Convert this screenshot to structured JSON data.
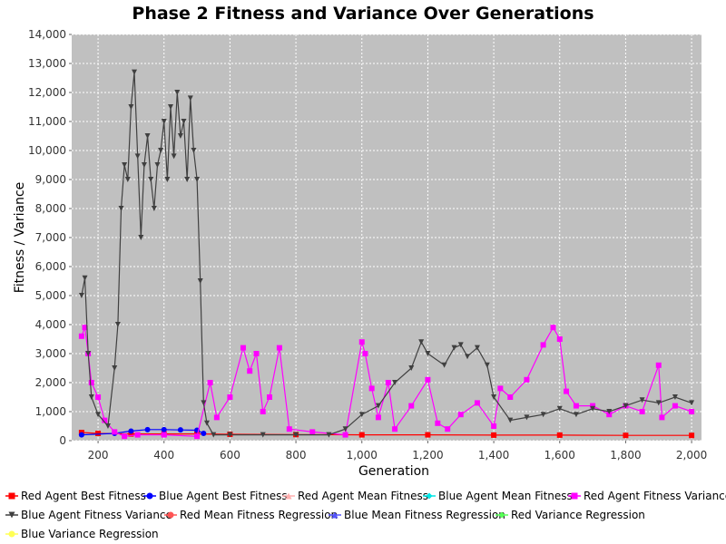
{
  "chart_data": {
    "type": "line",
    "title": "Phase 2 Fitness and Variance Over Generations",
    "xlabel": "Generation",
    "ylabel": "Fitness / Variance",
    "xlim": [
      120,
      2030
    ],
    "ylim": [
      0,
      14000
    ],
    "x_ticks": [
      200,
      400,
      600,
      800,
      1000,
      1200,
      1400,
      1600,
      1800,
      2000
    ],
    "x_tick_labels": [
      "200",
      "400",
      "600",
      "800",
      "1,000",
      "1,200",
      "1,400",
      "1,600",
      "1,800",
      "2,000"
    ],
    "y_ticks": [
      0,
      1000,
      2000,
      3000,
      4000,
      5000,
      6000,
      7000,
      8000,
      9000,
      10000,
      11000,
      12000,
      13000,
      14000
    ],
    "y_tick_labels": [
      "0",
      "1,000",
      "2,000",
      "3,000",
      "4,000",
      "5,000",
      "6,000",
      "7,000",
      "8,000",
      "9,000",
      "10,000",
      "11,000",
      "12,000",
      "13,000",
      "14,000"
    ],
    "grid": true,
    "background": "#c0c0c0",
    "legend_position": "bottom",
    "series": [
      {
        "name": "Red Agent Best Fitness",
        "color": "#ff0000",
        "marker": "square",
        "x": [
          150,
          200,
          300,
          400,
          500,
          600,
          800,
          1000,
          1200,
          1400,
          1600,
          1800,
          2000
        ],
        "values": [
          280,
          250,
          230,
          230,
          230,
          220,
          210,
          200,
          200,
          190,
          190,
          180,
          180
        ]
      },
      {
        "name": "Blue Agent Best Fitness",
        "color": "#0000ff",
        "marker": "circle",
        "x": [
          150,
          250,
          300,
          350,
          400,
          450,
          500,
          520
        ],
        "values": [
          200,
          250,
          330,
          380,
          380,
          370,
          360,
          250
        ]
      },
      {
        "name": "Red Agent Mean Fitness",
        "color": "#ffafaf",
        "marker": "triangle-up",
        "x": [],
        "values": []
      },
      {
        "name": "Blue Agent Mean Fitness",
        "color": "#00e5e5",
        "marker": "diamond",
        "x": [],
        "values": []
      },
      {
        "name": "Red Agent Fitness Variance",
        "color": "#ff00ff",
        "marker": "square",
        "x": [
          150,
          160,
          170,
          180,
          200,
          220,
          250,
          280,
          320,
          400,
          500,
          540,
          560,
          600,
          640,
          660,
          680,
          700,
          720,
          750,
          780,
          850,
          950,
          1000,
          1010,
          1030,
          1050,
          1080,
          1100,
          1150,
          1200,
          1230,
          1260,
          1300,
          1350,
          1400,
          1420,
          1450,
          1500,
          1550,
          1580,
          1600,
          1620,
          1650,
          1700,
          1750,
          1800,
          1850,
          1900,
          1910,
          1950,
          2000
        ],
        "values": [
          3600,
          3900,
          3000,
          2000,
          1500,
          700,
          300,
          150,
          200,
          200,
          150,
          2000,
          800,
          1500,
          3200,
          2400,
          3000,
          1000,
          1500,
          3200,
          400,
          300,
          200,
          3400,
          3000,
          1800,
          800,
          2000,
          400,
          1200,
          2100,
          600,
          400,
          900,
          1300,
          500,
          1800,
          1500,
          2100,
          3300,
          3900,
          3500,
          1700,
          1200,
          1200,
          900,
          1200,
          1000,
          2600,
          800,
          1200,
          1000
        ]
      },
      {
        "name": "Blue Agent Fitness Variance",
        "color": "#404040",
        "marker": "triangle-down",
        "x": [
          150,
          160,
          170,
          180,
          200,
          230,
          250,
          260,
          270,
          280,
          290,
          300,
          310,
          320,
          330,
          340,
          350,
          360,
          370,
          380,
          390,
          400,
          410,
          420,
          430,
          440,
          450,
          460,
          470,
          480,
          490,
          500,
          510,
          520,
          530,
          550,
          600,
          700,
          800,
          900,
          950,
          1000,
          1050,
          1100,
          1150,
          1180,
          1200,
          1250,
          1280,
          1300,
          1320,
          1350,
          1380,
          1400,
          1450,
          1500,
          1550,
          1600,
          1650,
          1700,
          1750,
          1800,
          1850,
          1900,
          1950,
          2000
        ],
        "values": [
          5000,
          5600,
          3000,
          1500,
          900,
          500,
          2500,
          4000,
          8000,
          9500,
          9000,
          11500,
          12700,
          9800,
          7000,
          9500,
          10500,
          9000,
          8000,
          9500,
          10000,
          11000,
          9000,
          11500,
          9800,
          12000,
          10500,
          11000,
          9000,
          11800,
          10000,
          9000,
          5500,
          1300,
          600,
          200,
          200,
          200,
          200,
          200,
          400,
          900,
          1200,
          2000,
          2500,
          3400,
          3000,
          2600,
          3200,
          3300,
          2900,
          3200,
          2600,
          1500,
          700,
          800,
          900,
          1100,
          900,
          1100,
          1000,
          1200,
          1400,
          1300,
          1500,
          1300
        ]
      },
      {
        "name": "Red Mean Fitness Regression",
        "color": "#ff5555",
        "marker": "circle",
        "x": [],
        "values": []
      },
      {
        "name": "Blue Mean Fitness Regression",
        "color": "#5555ff",
        "marker": "triangle-up",
        "x": [],
        "values": []
      },
      {
        "name": "Red Variance Regression",
        "color": "#55ff55",
        "marker": "diamond",
        "x": [],
        "values": []
      },
      {
        "name": "Blue Variance Regression",
        "color": "#ffff55",
        "marker": "circle",
        "x": [],
        "values": []
      }
    ]
  }
}
